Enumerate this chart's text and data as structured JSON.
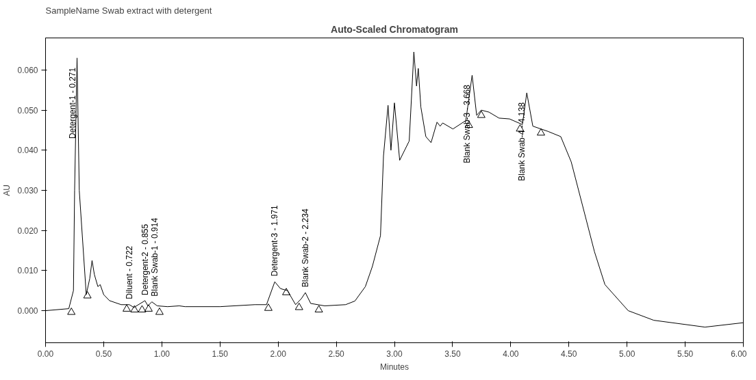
{
  "chart_data": {
    "type": "line",
    "title": "Auto-Scaled Chromatogram",
    "xlabel": "Minutes",
    "ylabel": "AU",
    "xlim": [
      0,
      6
    ],
    "ylim": [
      -0.008,
      0.068
    ],
    "xticks": [
      {
        "value": 0,
        "label": "0.00"
      },
      {
        "value": 0.5,
        "label": "0.50"
      },
      {
        "value": 1,
        "label": "1.00"
      },
      {
        "value": 1.5,
        "label": "1.50"
      },
      {
        "value": 2,
        "label": "2.00"
      },
      {
        "value": 2.5,
        "label": "2.50"
      },
      {
        "value": 3,
        "label": "3.00"
      },
      {
        "value": 3.5,
        "label": "3.50"
      },
      {
        "value": 4,
        "label": "4.00"
      },
      {
        "value": 4.5,
        "label": "4.50"
      },
      {
        "value": 5,
        "label": "5.00"
      },
      {
        "value": 5.5,
        "label": "5.50"
      },
      {
        "value": 6,
        "label": "6.00"
      }
    ],
    "yticks": [
      {
        "value": 0,
        "label": "0.000"
      },
      {
        "value": 0.01,
        "label": "0.010"
      },
      {
        "value": 0.02,
        "label": "0.020"
      },
      {
        "value": 0.03,
        "label": "0.030"
      },
      {
        "value": 0.04,
        "label": "0.040"
      },
      {
        "value": 0.05,
        "label": "0.050"
      },
      {
        "value": 0.06,
        "label": "0.060"
      }
    ],
    "grid": false,
    "series": [
      {
        "type": "line",
        "color": "#000000",
        "marker": "none",
        "line_style": "solid",
        "x": [
          0.0,
          0.2,
          0.24,
          0.25,
          0.271,
          0.29,
          0.35,
          0.38,
          0.4,
          0.42,
          0.45,
          0.47,
          0.5,
          0.55,
          0.65,
          0.72,
          0.76,
          0.855,
          0.88,
          0.914,
          0.96,
          1.05,
          1.15,
          1.2,
          1.5,
          1.8,
          1.9,
          1.971,
          2.02,
          2.08,
          2.15,
          2.2,
          2.234,
          2.28,
          2.4,
          2.58,
          2.66,
          2.75,
          2.81,
          2.88,
          2.906,
          2.945,
          2.97,
          3.0,
          3.045,
          3.127,
          3.167,
          3.19,
          3.205,
          3.227,
          3.27,
          3.315,
          3.366,
          3.393,
          3.415,
          3.503,
          3.614,
          3.668,
          3.707,
          3.747,
          3.813,
          3.9,
          3.99,
          4.1,
          4.138,
          4.19,
          4.32,
          4.43,
          4.52,
          4.63,
          4.72,
          4.81,
          5.01,
          5.23,
          5.67,
          6.0
        ],
        "values": [
          0.0,
          0.0005,
          0.005,
          0.03,
          0.063,
          0.03,
          0.004,
          0.008,
          0.0125,
          0.009,
          0.006,
          0.0065,
          0.004,
          0.0025,
          0.0015,
          0.0015,
          0.0008,
          0.0025,
          0.0012,
          0.0022,
          0.0012,
          0.001,
          0.0012,
          0.001,
          0.001,
          0.0015,
          0.0015,
          0.0072,
          0.0055,
          0.005,
          0.0015,
          0.003,
          0.0045,
          0.0018,
          0.0012,
          0.0015,
          0.0024,
          0.006,
          0.011,
          0.0187,
          0.0386,
          0.0512,
          0.04,
          0.0518,
          0.0375,
          0.0423,
          0.0645,
          0.056,
          0.0604,
          0.0508,
          0.0434,
          0.0419,
          0.047,
          0.046,
          0.0468,
          0.0453,
          0.0474,
          0.0587,
          0.0487,
          0.05,
          0.0495,
          0.048,
          0.0478,
          0.0464,
          0.0543,
          0.046,
          0.0447,
          0.0434,
          0.0371,
          0.0248,
          0.0147,
          0.0065,
          0.0,
          -0.0024,
          -0.0041,
          -0.003
        ]
      },
      {
        "type": "scatter",
        "color": "#000000",
        "marker": "triangle",
        "x": [
          0.222,
          0.36,
          0.698,
          0.765,
          0.83,
          0.886,
          0.98,
          1.916,
          2.07,
          2.18,
          2.35,
          3.64,
          3.747,
          4.08,
          4.26
        ],
        "values": [
          -0.0004,
          0.0037,
          0.0004,
          0.0002,
          0.0002,
          0.0004,
          -0.0004,
          0.0006,
          0.0045,
          0.0008,
          0.0002,
          0.0462,
          0.0487,
          0.0453,
          0.0443
        ]
      }
    ],
    "annotations": [
      "SampleName Swab extract with detergent",
      {
        "text": "Detergent-1 - 0.271",
        "x": 0.271,
        "y": 0.063
      },
      {
        "text": "Diluent - 0.722",
        "x": 0.722,
        "y": 0.0015
      },
      {
        "text": "Detergent-2 - 0.855",
        "x": 0.855,
        "y": 0.0025
      },
      {
        "text": "Blank Swab-1 - 0.914",
        "x": 0.914,
        "y": 0.0022
      },
      {
        "text": "Detergent-3 - 1.971",
        "x": 1.971,
        "y": 0.0072
      },
      {
        "text": "Blank Swab-2 - 2.234",
        "x": 2.234,
        "y": 0.0045
      },
      {
        "text": "Blank Swab-3 - 3.668",
        "x": 3.668,
        "y": 0.0587
      },
      {
        "text": "Blank Swab-4 - 4.138",
        "x": 4.138,
        "y": 0.0543
      }
    ]
  }
}
